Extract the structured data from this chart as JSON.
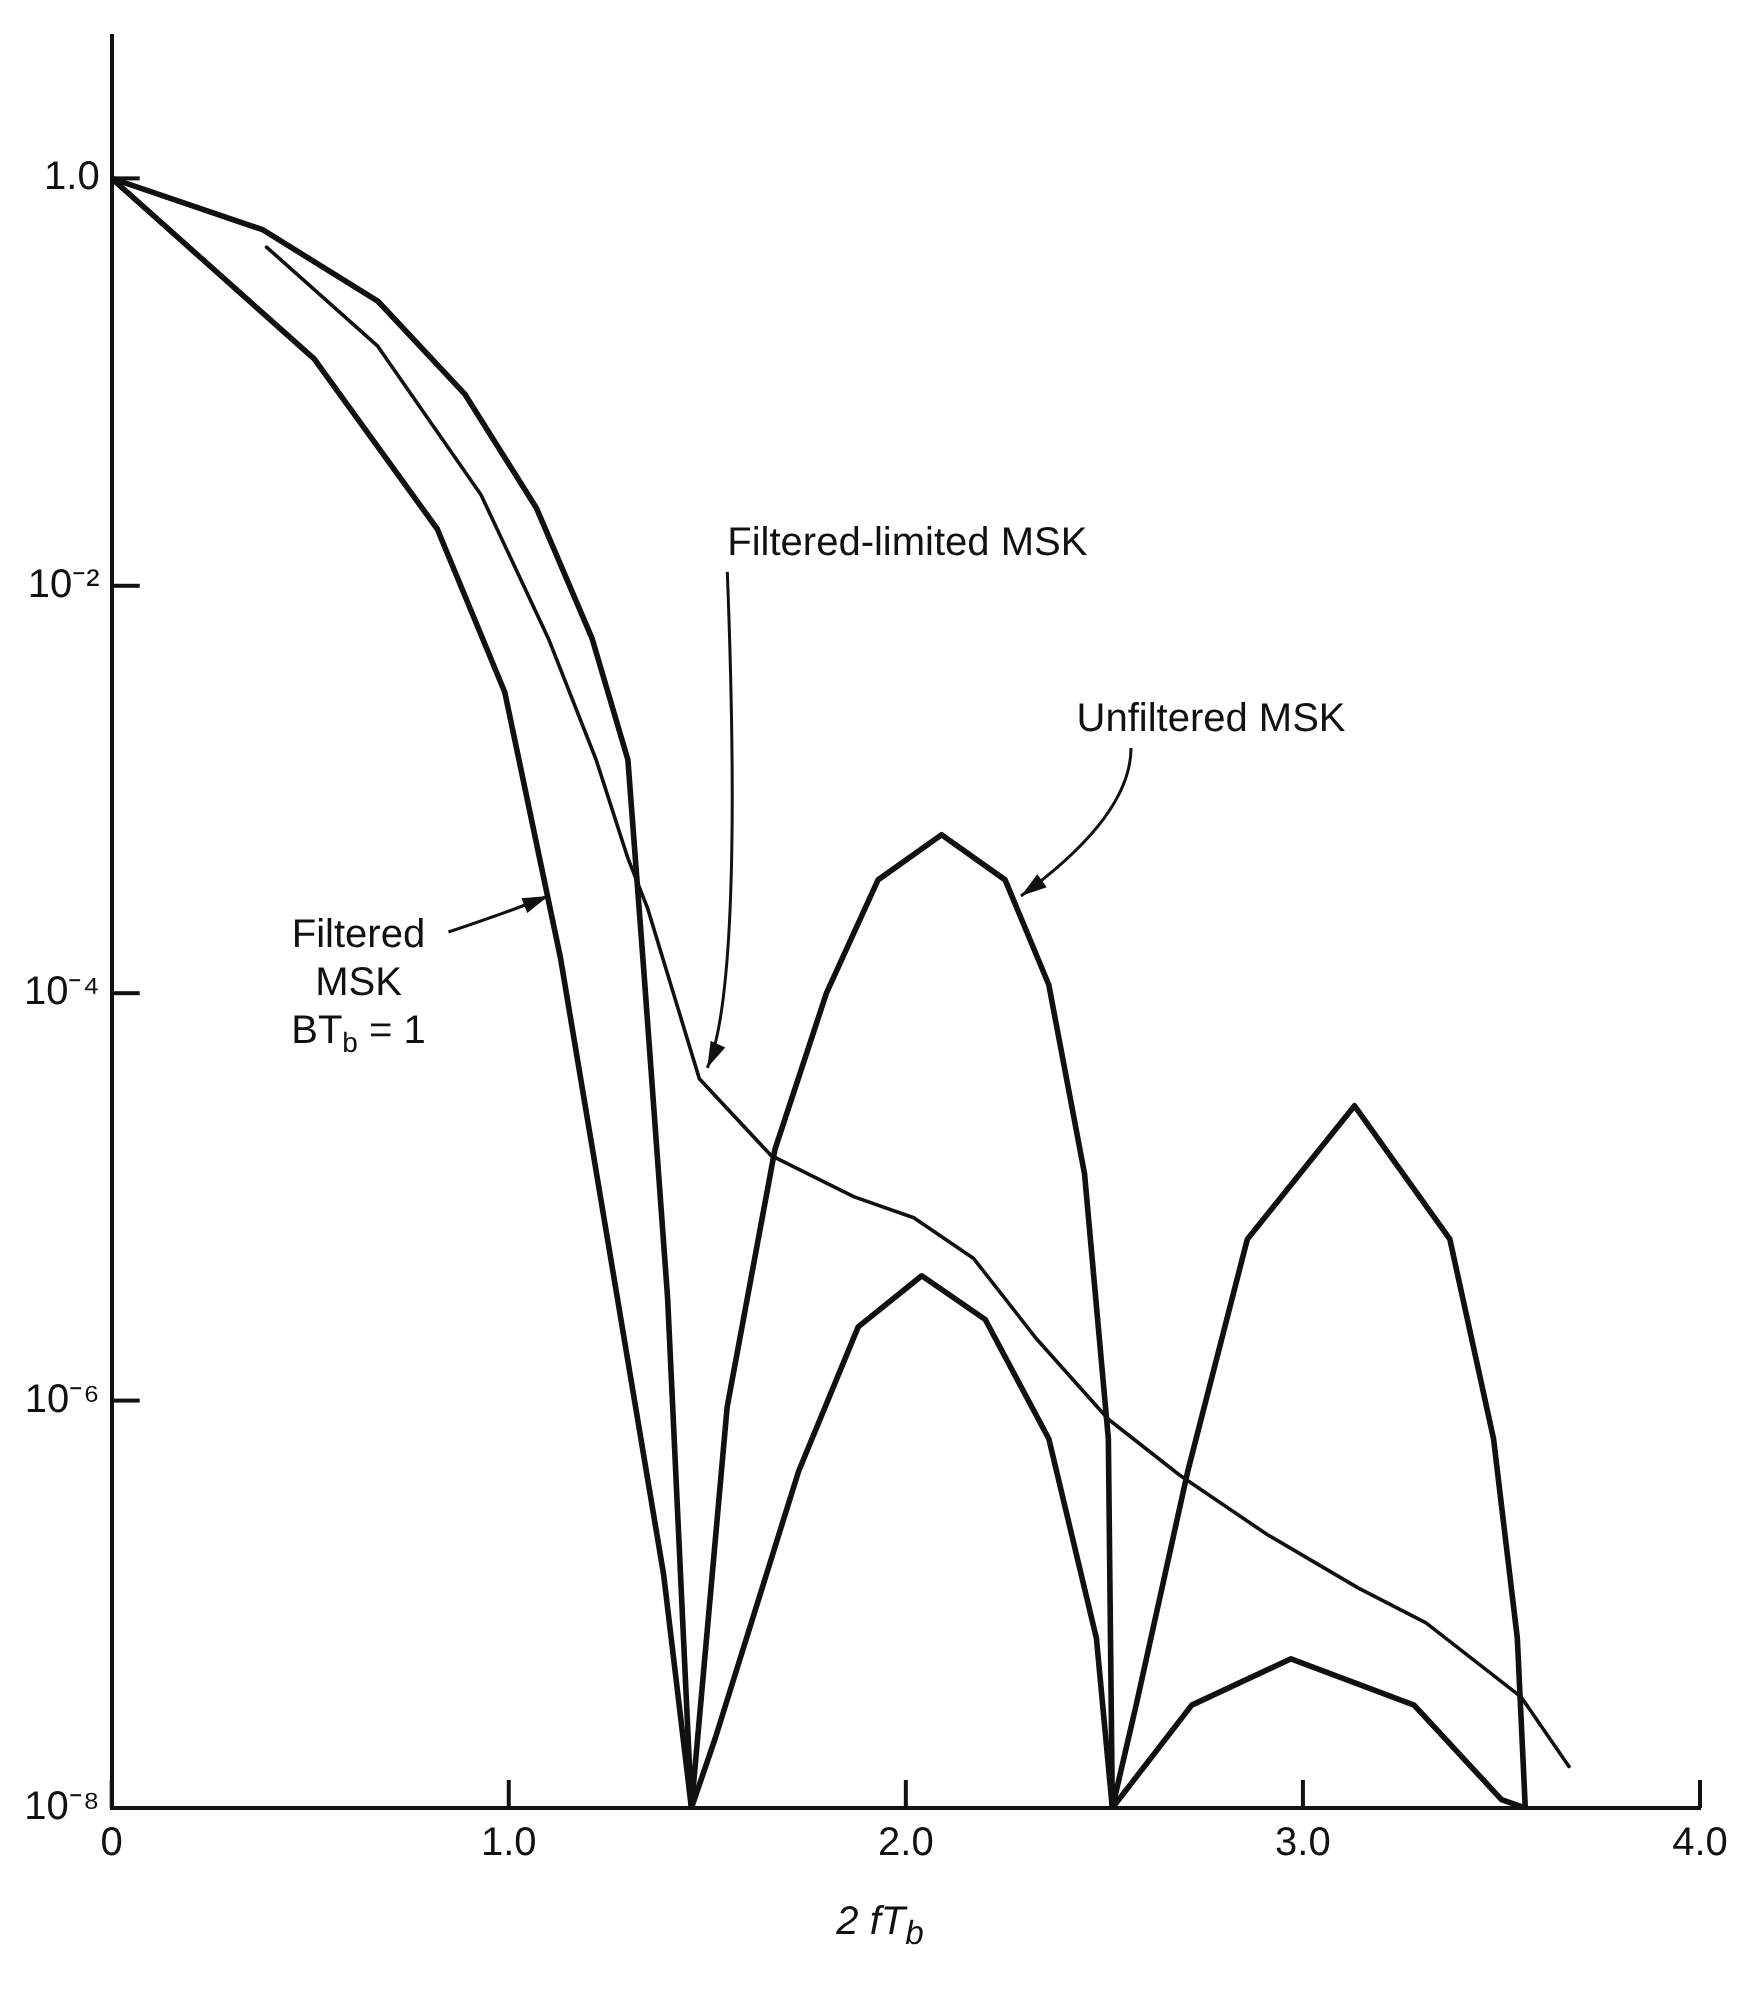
{
  "chart_data": {
    "type": "line",
    "xlabel": "2 fT$_{b}$",
    "log": "y",
    "grid": false,
    "legend": false,
    "marker": "none",
    "line_style": "solid",
    "xlim": [
      0,
      4
    ],
    "ylim": [
      1e-08,
      5
    ],
    "xticks": [
      0,
      {
        "value": 1,
        "label": "1.0"
      },
      {
        "value": 2,
        "label": "2.0"
      },
      {
        "value": 3,
        "label": "3.0"
      },
      {
        "value": 4,
        "label": "4.0"
      }
    ],
    "yticks": [
      {
        "value": 1e-08,
        "label": "10⁻⁸"
      },
      {
        "value": 1e-06,
        "label": "10⁻⁶"
      },
      {
        "value": 0.0001,
        "label": "10⁻⁴"
      },
      {
        "value": 0.01,
        "label": "10⁻²"
      },
      {
        "value": 1,
        "label": "1.0"
      }
    ],
    "series": [
      {
        "color": "#111111",
        "x": [
          0,
          0.38,
          0.67,
          0.89,
          1.07,
          1.21,
          1.3,
          1.34,
          1.4,
          1.46,
          1.55,
          1.67,
          1.8,
          1.93,
          2.09,
          2.25,
          2.36,
          2.45,
          2.51,
          2.52,
          2.58,
          2.71,
          2.86,
          3.13,
          3.37,
          3.48,
          3.54,
          3.56
        ],
        "values": [
          1,
          0.56,
          0.25,
          0.087,
          0.024,
          0.0055,
          0.0014,
          0.00013,
          3.2e-06,
          1e-08,
          9.3e-07,
          1.7e-05,
          0.0001,
          0.00036,
          0.0006,
          0.00036,
          0.00011,
          1.3e-05,
          6.5e-07,
          1e-08,
          3.2e-08,
          4.5e-07,
          6.2e-06,
          2.8e-05,
          6.2e-06,
          6.5e-07,
          6.8e-08,
          1e-08
        ]
      },
      {
        "color": "#111111",
        "x": [
          0,
          0.51,
          0.82,
          0.99,
          1.13,
          1.39,
          1.46,
          1.52,
          1.73,
          1.88,
          2.04,
          2.2,
          2.36,
          2.48,
          2.52,
          2.72,
          2.97,
          3.28,
          3.5,
          3.56
        ],
        "values": [
          1,
          0.13,
          0.019,
          0.003,
          0.00015,
          1.4e-07,
          1e-08,
          2.2e-08,
          4.5e-07,
          2.3e-06,
          4.1e-06,
          2.5e-06,
          6.5e-07,
          6.8e-08,
          1e-08,
          3.2e-08,
          5.4e-08,
          3.2e-08,
          1.1e-08,
          1e-08
        ]
      },
      {
        "color": "#111111",
        "x": [
          0.39,
          0.67,
          0.93,
          1.1,
          1.22,
          1.3,
          1.35,
          1.48,
          1.66,
          1.87,
          2.02,
          2.17,
          2.33,
          2.51,
          2.69,
          2.91,
          3.14,
          3.31,
          3.55,
          3.67
        ],
        "values": [
          0.46,
          0.15,
          0.028,
          0.0055,
          0.0014,
          0.00046,
          0.00026,
          3.8e-05,
          1.6e-05,
          1e-05,
          7.9e-06,
          5e-06,
          2e-06,
          8.1e-07,
          4.3e-07,
          2.2e-07,
          1.2e-07,
          8.1e-08,
          3.5e-08,
          1.6e-08
        ]
      }
    ],
    "annotations": [
      {
        "text": "Filtered-limited MSK",
        "x": 1.5,
        "y": 4.3e-05
      },
      {
        "text": "Unfiltered MSK",
        "x": 2.29,
        "y": 0.0003
      },
      {
        "text": "Filtered\nMSK\nBT$_{b}$ = 1",
        "x": 1.1,
        "y": 0.0003
      }
    ]
  }
}
